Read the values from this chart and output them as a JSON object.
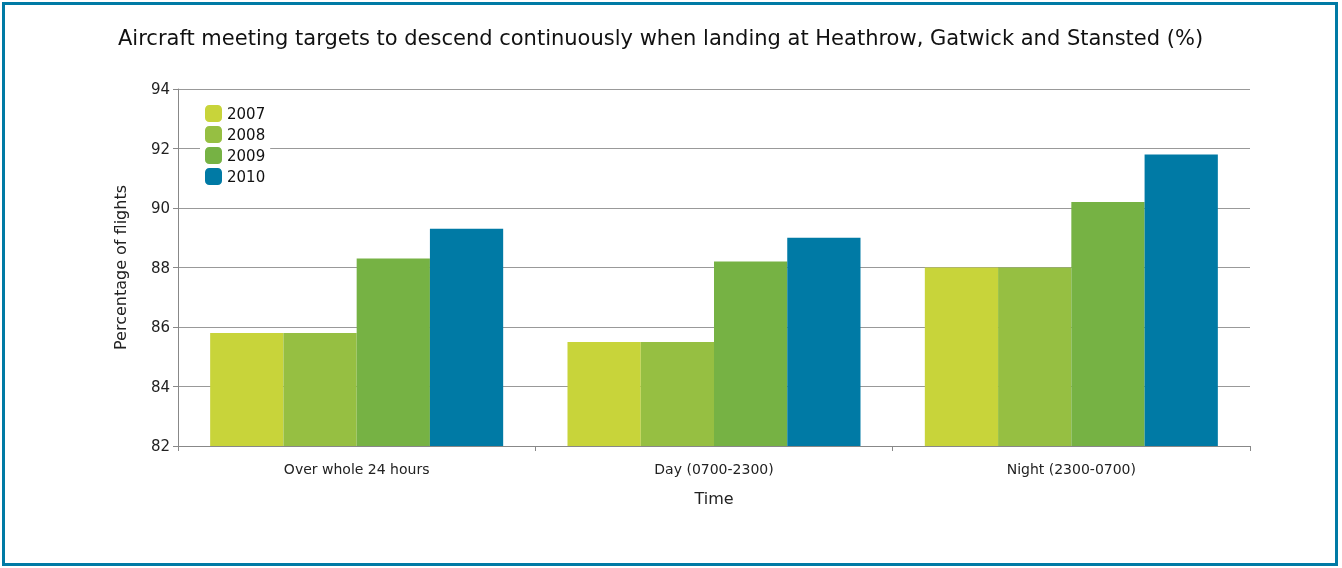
{
  "chart_data": {
    "type": "bar",
    "title": "Aircraft meeting targets to descend continuously when landing at Heathrow, Gatwick and Stansted (%)",
    "xlabel": "Time",
    "ylabel": "Percentage of flights",
    "categories": [
      "Over whole 24 hours",
      "Day (0700-2300)",
      "Night (2300-0700)"
    ],
    "series": [
      {
        "name": "2007",
        "color": "#c8d43a",
        "values": [
          85.8,
          85.5,
          88.0
        ]
      },
      {
        "name": "2008",
        "color": "#96bf42",
        "values": [
          85.8,
          85.5,
          88.0
        ]
      },
      {
        "name": "2009",
        "color": "#76b244",
        "values": [
          88.3,
          88.2,
          90.2
        ]
      },
      {
        "name": "2010",
        "color": "#007aa5",
        "values": [
          89.3,
          89.0,
          91.8
        ]
      }
    ],
    "ylim": [
      82,
      94
    ],
    "yticks": [
      82,
      84,
      86,
      88,
      90,
      92,
      94
    ],
    "grid": "y",
    "legend": "top left"
  }
}
